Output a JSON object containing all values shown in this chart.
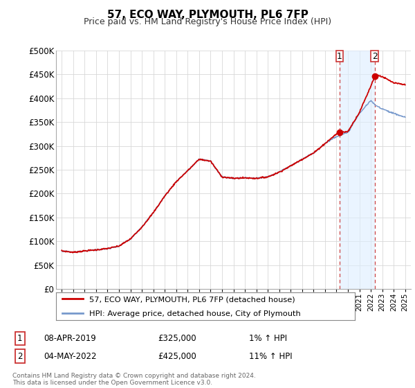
{
  "title": "57, ECO WAY, PLYMOUTH, PL6 7FP",
  "subtitle": "Price paid vs. HM Land Registry's House Price Index (HPI)",
  "ylabel_ticks": [
    "£0",
    "£50K",
    "£100K",
    "£150K",
    "£200K",
    "£250K",
    "£300K",
    "£350K",
    "£400K",
    "£450K",
    "£500K"
  ],
  "ytick_vals": [
    0,
    50000,
    100000,
    150000,
    200000,
    250000,
    300000,
    350000,
    400000,
    450000,
    500000
  ],
  "ylim": [
    0,
    500000
  ],
  "x_start_year": 1995,
  "x_end_year": 2025,
  "marker1_year": 2019.27,
  "marker1_price": 325000,
  "marker2_year": 2022.34,
  "marker2_price": 425000,
  "legend_line1": "57, ECO WAY, PLYMOUTH, PL6 7FP (detached house)",
  "legend_line2": "HPI: Average price, detached house, City of Plymouth",
  "ann1_num": "1",
  "ann1_date": "08-APR-2019",
  "ann1_price": "£325,000",
  "ann1_hpi": "1% ↑ HPI",
  "ann2_num": "2",
  "ann2_date": "04-MAY-2022",
  "ann2_price": "£425,000",
  "ann2_hpi": "11% ↑ HPI",
  "footer": "Contains HM Land Registry data © Crown copyright and database right 2024.\nThis data is licensed under the Open Government Licence v3.0.",
  "line_color_red": "#cc0000",
  "line_color_blue": "#7799cc",
  "marker_color_red": "#cc0000",
  "bg_color": "#ffffff",
  "grid_color": "#d8d8d8",
  "vline_color": "#cc4444",
  "shade_color": "#ddeeff",
  "box_edge_color": "#cc3333"
}
